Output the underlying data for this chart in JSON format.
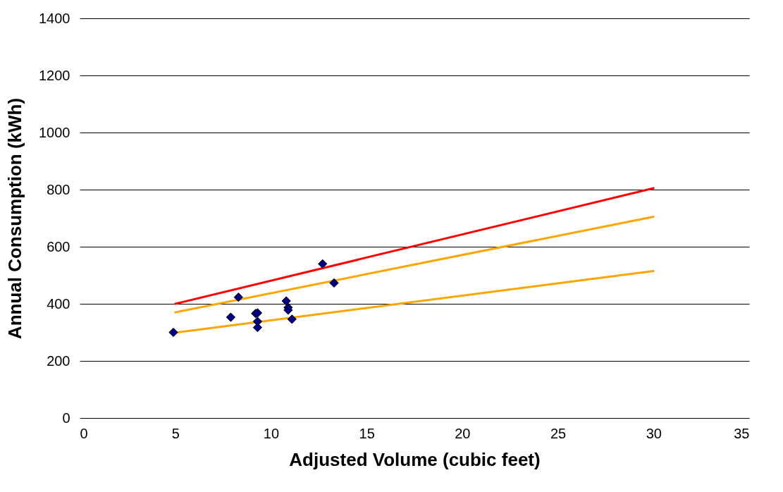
{
  "chart_data": {
    "type": "scatter",
    "xlabel": "Adjusted Volume (cubic feet)",
    "ylabel": "Annual Consumption (kWh)",
    "xlim": [
      0,
      35
    ],
    "xticks": [
      0,
      5,
      10,
      15,
      20,
      25,
      30,
      35
    ],
    "ylim": [
      0,
      1400
    ],
    "yticks": [
      0,
      200,
      400,
      600,
      800,
      1000,
      1200,
      1400
    ],
    "grid": "y",
    "line_style": "solid",
    "series": [
      {
        "type": "line",
        "color": "#ff0000",
        "x": [
          5,
          30
        ],
        "values": [
          400,
          805
        ]
      },
      {
        "type": "line",
        "color": "#ffa500",
        "x": [
          5,
          30
        ],
        "values": [
          370,
          705
        ]
      },
      {
        "type": "line",
        "color": "#ffa500",
        "x": [
          5,
          30
        ],
        "values": [
          299,
          515
        ]
      },
      {
        "marker": "diamond",
        "color": "#000080",
        "x": [
          4.9,
          7.9,
          8.3,
          9.2,
          9.3,
          9.3,
          9.3,
          10.8,
          10.9,
          10.9,
          11.1,
          12.7,
          13.3
        ],
        "values": [
          300,
          353,
          423,
          366,
          368,
          338,
          317,
          410,
          387,
          378,
          346,
          540,
          473
        ]
      }
    ]
  }
}
